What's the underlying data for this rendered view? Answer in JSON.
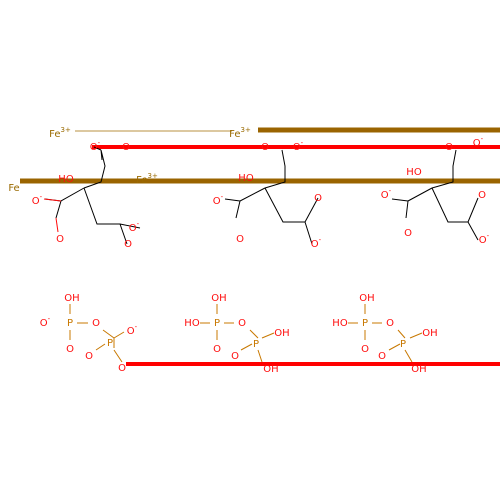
{
  "iron_labels": [
    {
      "text": "Fe",
      "charge": "3+"
    },
    {
      "text": "Fe",
      "charge": "3+"
    },
    {
      "text": "Fe",
      "charge": "3+"
    },
    {
      "text": "Fe",
      "charge": ""
    }
  ],
  "atom_labels": {
    "o_minus": "O",
    "minus": "-",
    "o": "O",
    "oh": "OH",
    "ho": "HO",
    "p": "P"
  },
  "colors": {
    "oxygen": "#ff0d0d",
    "phosphorus": "#c87800",
    "iron": "#9a6400",
    "bond": "#000000"
  }
}
